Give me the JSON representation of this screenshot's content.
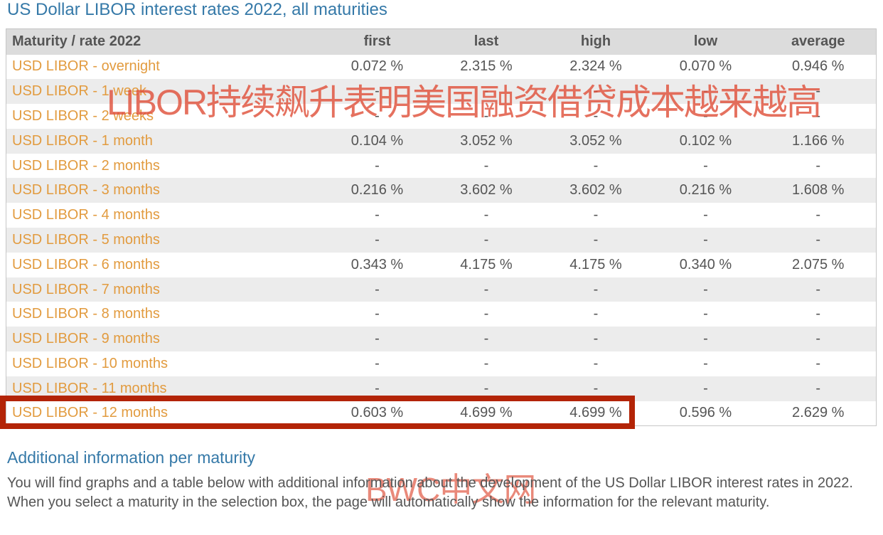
{
  "page": {
    "title": "US Dollar LIBOR interest rates 2022, all maturities",
    "section_heading": "Additional information per maturity",
    "paragraph": "You will find graphs and a table below with additional information about the development of the US Dollar LIBOR interest rates in 2022. When you select a maturity in the selection box, the page will automatically show the information for the relevant maturity."
  },
  "watermarks": {
    "overlay_text": "LIBOR持续飙升表明美国融资借贷成本越来越高",
    "site_text": "BWC中文网",
    "color": "#e0523c"
  },
  "colors": {
    "title_blue": "#3579a8",
    "link_orange": "#e29b3f",
    "header_bg": "#dcdcdc",
    "stripe_bg": "#ececec",
    "value_gray": "#555555",
    "highlight_border": "#b32407"
  },
  "table": {
    "columns": [
      "Maturity / rate 2022",
      "first",
      "last",
      "high",
      "low",
      "average"
    ],
    "highlighted_row_label": "USD LIBOR - 12 months",
    "rows": [
      {
        "label": "USD LIBOR - overnight",
        "values": [
          "0.072 %",
          "2.315 %",
          "2.324 %",
          "0.070 %",
          "0.946 %"
        ],
        "highlighted": false
      },
      {
        "label": "USD LIBOR - 1 week",
        "values": [
          "-",
          "-",
          "-",
          "-",
          "-"
        ],
        "highlighted": false
      },
      {
        "label": "USD LIBOR - 2 weeks",
        "values": [
          "-",
          "-",
          "-",
          "-",
          "-"
        ],
        "highlighted": false
      },
      {
        "label": "USD LIBOR - 1 month",
        "values": [
          "0.104 %",
          "3.052 %",
          "3.052 %",
          "0.102 %",
          "1.166 %"
        ],
        "highlighted": false
      },
      {
        "label": "USD LIBOR - 2 months",
        "values": [
          "-",
          "-",
          "-",
          "-",
          "-"
        ],
        "highlighted": false
      },
      {
        "label": "USD LIBOR - 3 months",
        "values": [
          "0.216 %",
          "3.602 %",
          "3.602 %",
          "0.216 %",
          "1.608 %"
        ],
        "highlighted": false
      },
      {
        "label": "USD LIBOR - 4 months",
        "values": [
          "-",
          "-",
          "-",
          "-",
          "-"
        ],
        "highlighted": false
      },
      {
        "label": "USD LIBOR - 5 months",
        "values": [
          "-",
          "-",
          "-",
          "-",
          "-"
        ],
        "highlighted": false
      },
      {
        "label": "USD LIBOR - 6 months",
        "values": [
          "0.343 %",
          "4.175 %",
          "4.175 %",
          "0.340 %",
          "2.075 %"
        ],
        "highlighted": false
      },
      {
        "label": "USD LIBOR - 7 months",
        "values": [
          "-",
          "-",
          "-",
          "-",
          "-"
        ],
        "highlighted": false
      },
      {
        "label": "USD LIBOR - 8 months",
        "values": [
          "-",
          "-",
          "-",
          "-",
          "-"
        ],
        "highlighted": false
      },
      {
        "label": "USD LIBOR - 9 months",
        "values": [
          "-",
          "-",
          "-",
          "-",
          "-"
        ],
        "highlighted": false
      },
      {
        "label": "USD LIBOR - 10 months",
        "values": [
          "-",
          "-",
          "-",
          "-",
          "-"
        ],
        "highlighted": false
      },
      {
        "label": "USD LIBOR - 11 months",
        "values": [
          "-",
          "-",
          "-",
          "-",
          "-"
        ],
        "highlighted": false
      },
      {
        "label": "USD LIBOR - 12 months",
        "values": [
          "0.603 %",
          "4.699 %",
          "4.699 %",
          "0.596 %",
          "2.629 %"
        ],
        "highlighted": true
      }
    ]
  }
}
